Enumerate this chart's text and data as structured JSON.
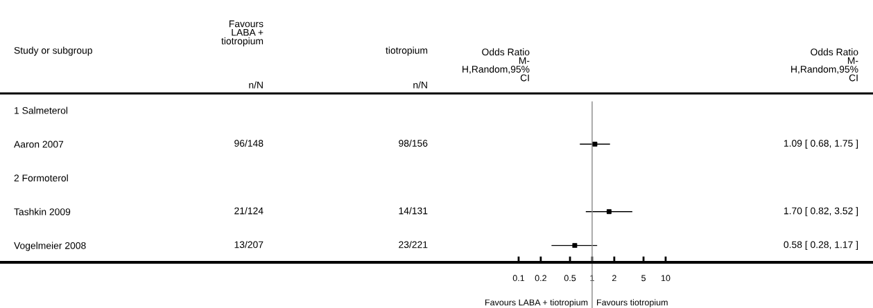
{
  "chart_data": {
    "type": "scatter",
    "orientation": "horizontal",
    "categories": [
      "1 Salmeterol",
      "Aaron 2007",
      "2 Formoterol",
      "Tashkin 2009",
      "Vogelmeier 2008"
    ],
    "values": [
      null,
      1.09,
      null,
      1.7,
      0.58
    ],
    "errors": [
      null,
      [
        0.68,
        1.75
      ],
      null,
      [
        0.82,
        3.52
      ],
      [
        0.28,
        1.17
      ]
    ],
    "color": "#000000",
    "marker": "square",
    "log": "x",
    "xlim": [
      8.8e-09,
      6620
    ],
    "xticks": [
      0.1,
      0.2,
      0.5,
      1,
      2,
      5,
      10
    ],
    "ref_lines": [
      {
        "axis": "x",
        "value": 1,
        "color": "#888888"
      }
    ],
    "annotations": [
      "Study or subgroup",
      "Favours\nLABA +\ntiotropium",
      "tiotropium",
      "Odds Ratio\nM-\nH,Random,95%\nCI",
      "Odds Ratio\nM-\nH,Random,95%\nCI",
      "n/N",
      "n/N",
      "Favours LABA + tiotropium",
      "Favours tiotropium",
      "96/148",
      "98/156",
      "21/124",
      "14/131",
      "13/207",
      "23/221",
      "1.09 [ 0.68, 1.75 ]",
      "1.70 [ 0.82, 3.52 ]",
      "0.58 [ 0.28, 1.17 ]"
    ]
  }
}
